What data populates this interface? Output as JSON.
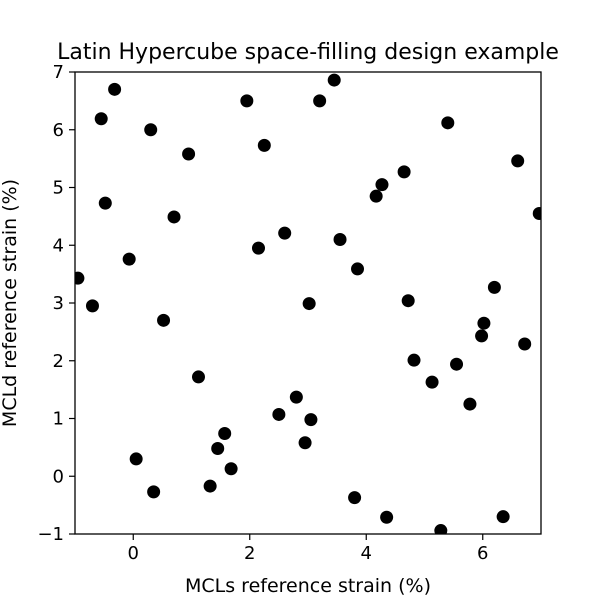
{
  "chart_data": {
    "type": "scatter",
    "title": "Latin Hypercube space-filling design example",
    "xlabel": "MCLs reference strain (%)",
    "ylabel": "MCLd reference strain (%)",
    "xlim": [
      -1,
      7
    ],
    "ylim": [
      -1,
      7
    ],
    "xticks": [
      0,
      2,
      4,
      6
    ],
    "yticks": [
      -1,
      0,
      1,
      2,
      3,
      4,
      5,
      6,
      7
    ],
    "grid": false,
    "marker_color": "#000000",
    "series": [
      {
        "points": [
          [
            -0.32,
            6.7
          ],
          [
            -0.55,
            6.19
          ],
          [
            -0.48,
            4.73
          ],
          [
            -0.7,
            2.95
          ],
          [
            -0.95,
            3.43
          ],
          [
            -0.07,
            3.76
          ],
          [
            0.3,
            6.0
          ],
          [
            0.95,
            5.58
          ],
          [
            0.7,
            4.49
          ],
          [
            0.52,
            2.7
          ],
          [
            0.05,
            0.3
          ],
          [
            0.35,
            -0.27
          ],
          [
            1.12,
            1.72
          ],
          [
            1.32,
            -0.17
          ],
          [
            1.45,
            0.48
          ],
          [
            1.57,
            0.74
          ],
          [
            1.68,
            0.13
          ],
          [
            1.95,
            6.5
          ],
          [
            2.25,
            5.73
          ],
          [
            2.15,
            3.95
          ],
          [
            2.6,
            4.21
          ],
          [
            2.5,
            1.07
          ],
          [
            2.8,
            1.37
          ],
          [
            2.95,
            0.58
          ],
          [
            3.02,
            2.99
          ],
          [
            3.05,
            0.98
          ],
          [
            3.2,
            6.5
          ],
          [
            3.45,
            6.86
          ],
          [
            3.55,
            4.1
          ],
          [
            3.85,
            3.59
          ],
          [
            3.8,
            -0.37
          ],
          [
            4.17,
            4.85
          ],
          [
            4.27,
            5.05
          ],
          [
            4.35,
            -0.71
          ],
          [
            4.65,
            5.27
          ],
          [
            4.72,
            3.04
          ],
          [
            4.82,
            2.01
          ],
          [
            5.13,
            1.63
          ],
          [
            5.28,
            -0.94
          ],
          [
            5.4,
            6.12
          ],
          [
            5.55,
            1.94
          ],
          [
            5.78,
            1.25
          ],
          [
            5.98,
            2.43
          ],
          [
            6.02,
            2.65
          ],
          [
            6.2,
            3.27
          ],
          [
            6.35,
            -0.7
          ],
          [
            6.6,
            5.46
          ],
          [
            6.72,
            2.29
          ],
          [
            6.97,
            4.55
          ]
        ]
      }
    ]
  }
}
